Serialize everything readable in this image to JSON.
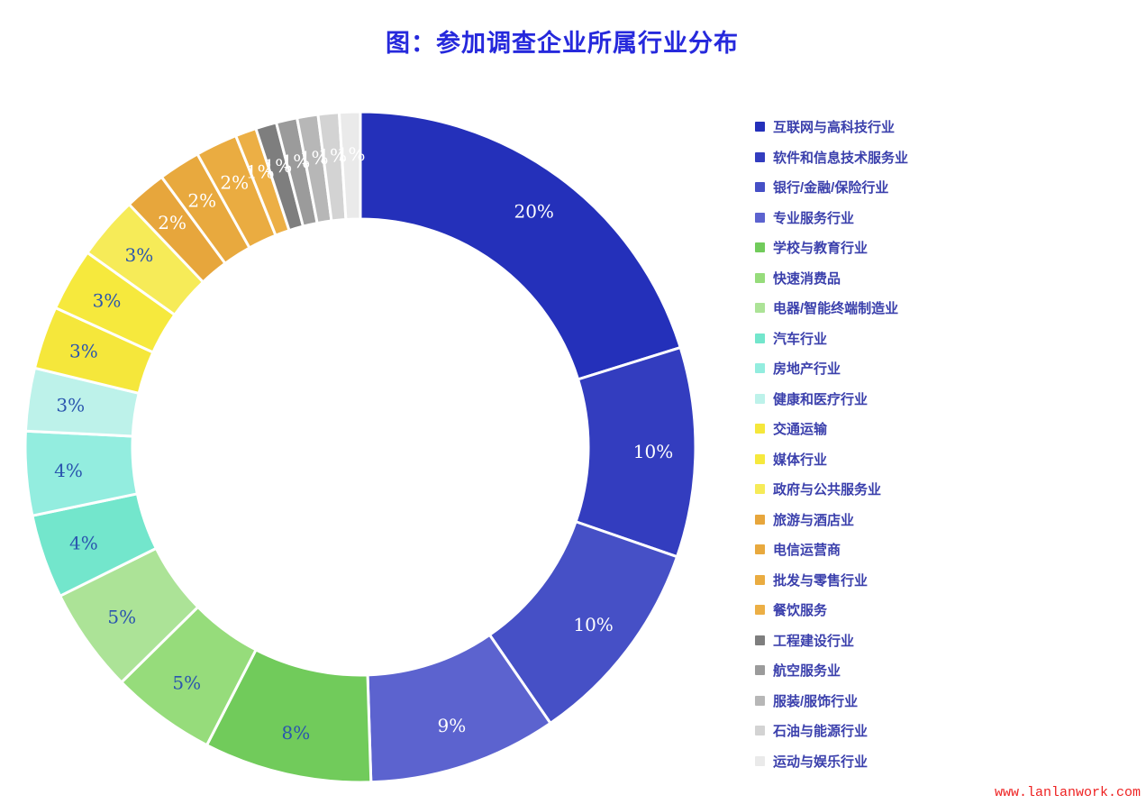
{
  "title": "图：参加调查企业所属行业分布",
  "title_color": "#2629DC",
  "watermark": {
    "text": "www.lanlanwork.com",
    "color": "#EE2222"
  },
  "legend_text_color": "#3B40AC",
  "chart_data": {
    "type": "pie",
    "subtype": "donut",
    "title": "图：参加调查企业所属行业分布",
    "direction": "clockwise",
    "start_angle_deg": 0,
    "inner_radius_ratio": 0.68,
    "legend_position": "right",
    "slice_border_color": "#ffffff",
    "series": [
      {
        "label": "互联网与高科技行业",
        "value": 20,
        "display": "20%",
        "color": "#2430BA",
        "label_color": "#FFFFFF"
      },
      {
        "label": "软件和信息技术服务业",
        "value": 10,
        "display": "10%",
        "color": "#333DBF",
        "label_color": "#FFFFFF"
      },
      {
        "label": "银行/金融/保险行业",
        "value": 10,
        "display": "10%",
        "color": "#4650C6",
        "label_color": "#FFFFFF"
      },
      {
        "label": "专业服务行业",
        "value": 9,
        "display": "9%",
        "color": "#5C63CF",
        "label_color": "#FFFFFF"
      },
      {
        "label": "学校与教育行业",
        "value": 8,
        "display": "8%",
        "color": "#71CB5B",
        "label_color": "#2A55AE"
      },
      {
        "label": "快速消费品",
        "value": 5,
        "display": "5%",
        "color": "#96DC7B",
        "label_color": "#2A55AE"
      },
      {
        "label": "电器/智能终端制造业",
        "value": 5,
        "display": "5%",
        "color": "#ACE397",
        "label_color": "#2A55AE"
      },
      {
        "label": "汽车行业",
        "value": 4,
        "display": "4%",
        "color": "#73E6CC",
        "label_color": "#2A55AE"
      },
      {
        "label": "房地产行业",
        "value": 4,
        "display": "4%",
        "color": "#93EDDF",
        "label_color": "#2A55AE"
      },
      {
        "label": "健康和医疗行业",
        "value": 3,
        "display": "3%",
        "color": "#BDF2EA",
        "label_color": "#2A55AE"
      },
      {
        "label": "交通运输",
        "value": 3,
        "display": "3%",
        "color": "#F5E73B",
        "label_color": "#2A55AE"
      },
      {
        "label": "媒体行业",
        "value": 3,
        "display": "3%",
        "color": "#F6E93D",
        "label_color": "#2A55AE"
      },
      {
        "label": "政府与公共服务业",
        "value": 3,
        "display": "3%",
        "color": "#F6EB58",
        "label_color": "#2A55AE"
      },
      {
        "label": "旅游与酒店业",
        "value": 2,
        "display": "2%",
        "color": "#E7A63C",
        "label_color": "#FFFFFF"
      },
      {
        "label": "电信运营商",
        "value": 2,
        "display": "2%",
        "color": "#E8A93E",
        "label_color": "#FFFFFF"
      },
      {
        "label": "批发与零售行业",
        "value": 2,
        "display": "2%",
        "color": "#EAAC41",
        "label_color": "#FFFFFF"
      },
      {
        "label": "餐饮服务",
        "value": 1,
        "display": "1%",
        "color": "#ECAF45",
        "label_color": "#FFFFFF"
      },
      {
        "label": "工程建设行业",
        "value": 1,
        "display": "1%",
        "color": "#7E7E7E",
        "label_color": "#FFFFFF"
      },
      {
        "label": "航空服务业",
        "value": 1,
        "display": "1%",
        "color": "#9B9B9B",
        "label_color": "#FFFFFF"
      },
      {
        "label": "服装/服饰行业",
        "value": 1,
        "display": "1%",
        "color": "#B7B7B7",
        "label_color": "#FFFFFF"
      },
      {
        "label": "石油与能源行业",
        "value": 1,
        "display": "1%",
        "color": "#D3D3D3",
        "label_color": "#FFFFFF"
      },
      {
        "label": "运动与娱乐行业",
        "value": 1,
        "display": "1%",
        "color": "#EAEAEA",
        "label_color": "#FFFFFF"
      }
    ]
  }
}
